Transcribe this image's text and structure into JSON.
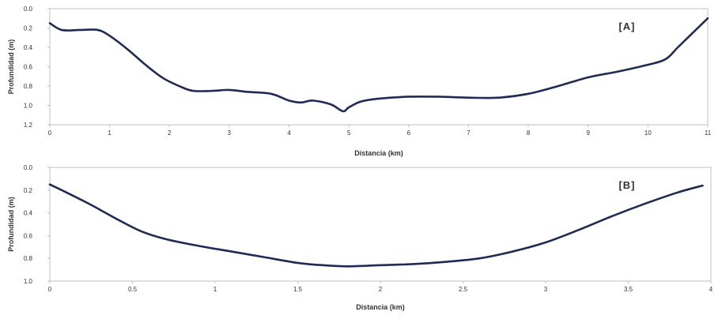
{
  "figure": {
    "line_color": "#1f2a55",
    "frame_color": "#bfbfbf",
    "grid_color": "#d9d9d9"
  },
  "chart_data": [
    {
      "type": "line",
      "panel_label": "[A]",
      "xlabel": "Distancia (km)",
      "ylabel": "Profundidad (m)",
      "xlim": [
        0,
        11
      ],
      "ylim": [
        0,
        1.2
      ],
      "y_inverted": true,
      "x_ticks": [
        "0",
        "1",
        "2",
        "3",
        "4",
        "5",
        "6",
        "7",
        "8",
        "9",
        "10",
        "11"
      ],
      "y_ticks": [
        "0.0",
        "0.2",
        "0.4",
        "0.6",
        "0.8",
        "1.0",
        "1.2"
      ],
      "grid": false,
      "series": [
        {
          "x": [
            0,
            0.2,
            0.5,
            0.8,
            1.0,
            1.3,
            1.6,
            1.9,
            2.2,
            2.4,
            2.7,
            3.0,
            3.3,
            3.7,
            4.0,
            4.2,
            4.4,
            4.7,
            4.9,
            5.0,
            5.2,
            5.5,
            6.0,
            6.5,
            7.0,
            7.5,
            8.0,
            8.5,
            9.0,
            9.5,
            10.0,
            10.3,
            10.5,
            10.8,
            11.0
          ],
          "y": [
            0.15,
            0.22,
            0.22,
            0.22,
            0.28,
            0.42,
            0.58,
            0.72,
            0.81,
            0.85,
            0.85,
            0.84,
            0.86,
            0.88,
            0.95,
            0.97,
            0.95,
            0.99,
            1.06,
            1.02,
            0.96,
            0.93,
            0.91,
            0.91,
            0.92,
            0.92,
            0.88,
            0.8,
            0.71,
            0.65,
            0.58,
            0.52,
            0.4,
            0.22,
            0.1
          ]
        }
      ]
    },
    {
      "type": "line",
      "panel_label": "[B]",
      "xlabel": "Distancia (km)",
      "ylabel": "Profundidad (m)",
      "xlim": [
        0,
        4
      ],
      "ylim": [
        0,
        1.0
      ],
      "y_inverted": true,
      "x_ticks": [
        "0",
        "0.5",
        "1",
        "1.5",
        "2",
        "2.5",
        "3",
        "3.5",
        "4"
      ],
      "y_ticks": [
        "0.0",
        "0.2",
        "0.4",
        "0.6",
        "0.8",
        "1.0"
      ],
      "grid": false,
      "series": [
        {
          "x": [
            0,
            0.1,
            0.25,
            0.4,
            0.55,
            0.7,
            0.9,
            1.1,
            1.3,
            1.5,
            1.65,
            1.8,
            2.0,
            2.2,
            2.4,
            2.6,
            2.8,
            3.0,
            3.2,
            3.4,
            3.6,
            3.8,
            3.95
          ],
          "y": [
            0.15,
            0.22,
            0.33,
            0.45,
            0.56,
            0.63,
            0.69,
            0.74,
            0.79,
            0.84,
            0.86,
            0.87,
            0.86,
            0.85,
            0.83,
            0.8,
            0.74,
            0.66,
            0.55,
            0.43,
            0.32,
            0.22,
            0.16
          ]
        }
      ]
    }
  ]
}
